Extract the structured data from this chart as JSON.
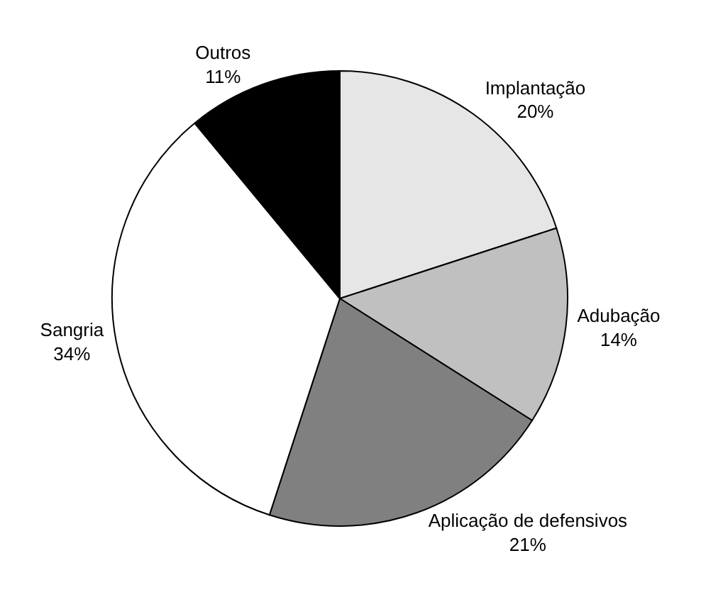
{
  "chart_data": {
    "type": "pie",
    "categories": [
      "Implantação",
      "Adubação",
      "Aplicação de defensivos",
      "Sangria",
      "Outros"
    ],
    "values": [
      20,
      14,
      21,
      34,
      11
    ],
    "value_labels": [
      "20%",
      "14%",
      "21%",
      "34%",
      "11%"
    ],
    "colors": [
      "#e6e6e6",
      "#c0c0c0",
      "#808080",
      "#ffffff",
      "#000000"
    ],
    "legend": false
  }
}
